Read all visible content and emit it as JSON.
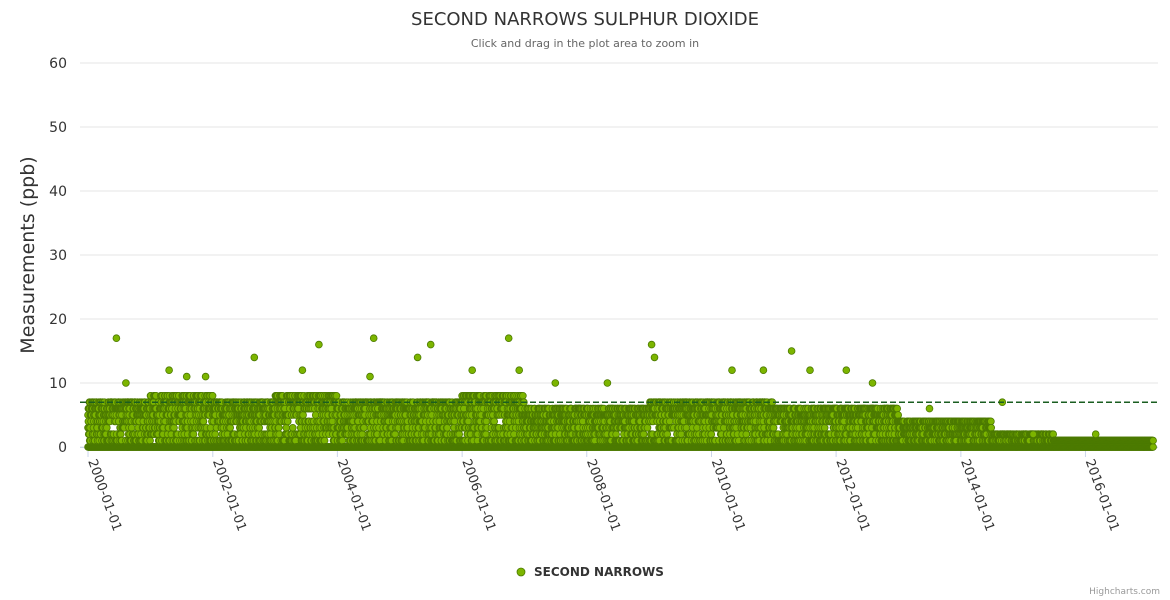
{
  "chart_data": {
    "type": "scatter",
    "title": "SECOND NARROWS SULPHUR DIOXIDE",
    "subtitle": "Click and drag in the plot area to zoom in",
    "ylabel": "Measurements (ppb)",
    "xlabel": "",
    "ylim": [
      0,
      60
    ],
    "yticks": [
      0,
      10,
      20,
      30,
      40,
      50,
      60
    ],
    "xlim": [
      "1999-11-15",
      "2017-03-01"
    ],
    "xticks": [
      "2000-01-01",
      "2002-01-01",
      "2004-01-01",
      "2006-01-01",
      "2008-01-01",
      "2010-01-01",
      "2012-01-01",
      "2014-01-01",
      "2016-01-01"
    ],
    "reference_line": {
      "value": 7,
      "style": "dashed",
      "color": "#1a5e20"
    },
    "grid": true,
    "legend": {
      "position": "bottom-center",
      "entries": [
        "SECOND NARROWS"
      ]
    },
    "series": [
      {
        "name": "SECOND NARROWS",
        "color": "#7cb500",
        "outline": "#4c7a00",
        "periods": [
          {
            "start": "2000-01-01",
            "end": "2000-12-31",
            "typical_max": 7,
            "spread": 4
          },
          {
            "start": "2001-01-01",
            "end": "2001-12-31",
            "typical_max": 8,
            "spread": 5
          },
          {
            "start": "2002-01-01",
            "end": "2002-12-31",
            "typical_max": 7,
            "spread": 4
          },
          {
            "start": "2003-01-01",
            "end": "2003-12-31",
            "typical_max": 8,
            "spread": 5
          },
          {
            "start": "2004-01-01",
            "end": "2004-12-31",
            "typical_max": 7,
            "spread": 4
          },
          {
            "start": "2005-01-01",
            "end": "2005-12-31",
            "typical_max": 7,
            "spread": 4
          },
          {
            "start": "2006-01-01",
            "end": "2006-12-31",
            "typical_max": 8,
            "spread": 5
          },
          {
            "start": "2007-01-01",
            "end": "2007-12-31",
            "typical_max": 6,
            "spread": 4
          },
          {
            "start": "2008-01-01",
            "end": "2008-12-31",
            "typical_max": 6,
            "spread": 4
          },
          {
            "start": "2009-01-01",
            "end": "2009-12-31",
            "typical_max": 7,
            "spread": 4
          },
          {
            "start": "2010-01-01",
            "end": "2010-12-31",
            "typical_max": 7,
            "spread": 4
          },
          {
            "start": "2011-01-01",
            "end": "2011-12-31",
            "typical_max": 6,
            "spread": 4
          },
          {
            "start": "2012-01-01",
            "end": "2012-12-31",
            "typical_max": 6,
            "spread": 3
          },
          {
            "start": "2013-01-01",
            "end": "2013-12-31",
            "typical_max": 4,
            "spread": 3
          },
          {
            "start": "2014-01-01",
            "end": "2014-06-30",
            "typical_max": 4,
            "spread": 3
          },
          {
            "start": "2014-07-01",
            "end": "2015-06-30",
            "typical_max": 2,
            "spread": 2
          },
          {
            "start": "2015-07-01",
            "end": "2017-01-31",
            "typical_max": 1,
            "spread": 1
          }
        ],
        "peaks": [
          {
            "x": "2000-06-15",
            "y": 17
          },
          {
            "x": "2000-08-10",
            "y": 10
          },
          {
            "x": "2001-04-20",
            "y": 12
          },
          {
            "x": "2001-08-01",
            "y": 11
          },
          {
            "x": "2001-11-20",
            "y": 11
          },
          {
            "x": "2002-09-01",
            "y": 14
          },
          {
            "x": "2003-06-10",
            "y": 12
          },
          {
            "x": "2003-09-15",
            "y": 16
          },
          {
            "x": "2004-07-10",
            "y": 11
          },
          {
            "x": "2004-08-01",
            "y": 17
          },
          {
            "x": "2005-04-15",
            "y": 14
          },
          {
            "x": "2005-07-01",
            "y": 16
          },
          {
            "x": "2006-03-01",
            "y": 12
          },
          {
            "x": "2006-10-01",
            "y": 17
          },
          {
            "x": "2006-12-01",
            "y": 12
          },
          {
            "x": "2007-07-01",
            "y": 10
          },
          {
            "x": "2008-05-01",
            "y": 10
          },
          {
            "x": "2009-01-15",
            "y": 16
          },
          {
            "x": "2009-02-01",
            "y": 14
          },
          {
            "x": "2010-05-01",
            "y": 12
          },
          {
            "x": "2010-11-01",
            "y": 12
          },
          {
            "x": "2011-04-15",
            "y": 15
          },
          {
            "x": "2011-08-01",
            "y": 12
          },
          {
            "x": "2012-03-01",
            "y": 12
          },
          {
            "x": "2012-08-01",
            "y": 10
          },
          {
            "x": "2013-07-01",
            "y": 6
          },
          {
            "x": "2014-09-01",
            "y": 7
          },
          {
            "x": "2015-03-01",
            "y": 2
          },
          {
            "x": "2016-03-01",
            "y": 2
          }
        ]
      }
    ]
  },
  "credits": "Highcharts.com"
}
